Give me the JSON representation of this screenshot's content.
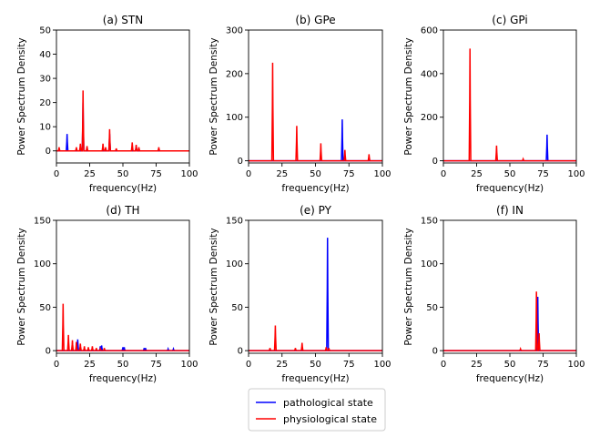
{
  "chart_data": {
    "type": "line",
    "xlabel": "frequency(Hz)",
    "ylabel": "Power Spectrum Density",
    "xlim": [
      0,
      100
    ],
    "xticks": [
      0,
      25,
      50,
      75,
      100
    ],
    "legend": {
      "placement": "bottom-center",
      "entries": [
        {
          "name": "pathological state",
          "color": "#0000ff"
        },
        {
          "name": "physiological state",
          "color": "#ff0000"
        }
      ]
    },
    "panels": [
      {
        "title": "(a) STN",
        "ylim": [
          -5,
          50
        ],
        "yticks": [
          0,
          10,
          20,
          30,
          40,
          50
        ],
        "series": [
          {
            "name": "pathological state",
            "baseline": 0,
            "peaks": [
              [
                8,
                7
              ],
              [
                20,
                20
              ],
              [
                40,
                7
              ],
              [
                60,
                2
              ]
            ]
          },
          {
            "name": "physiological state",
            "baseline": 0,
            "peaks": [
              [
                2,
                1.5
              ],
              [
                15,
                1.5
              ],
              [
                18,
                3
              ],
              [
                20,
                25
              ],
              [
                23,
                2
              ],
              [
                35,
                3
              ],
              [
                37,
                1.5
              ],
              [
                40,
                9
              ],
              [
                45,
                1
              ],
              [
                57,
                3.5
              ],
              [
                60,
                2.5
              ],
              [
                62,
                1.5
              ],
              [
                77,
                1.5
              ]
            ]
          }
        ]
      },
      {
        "title": "(b) GPe",
        "ylim": [
          -5,
          300
        ],
        "yticks": [
          0,
          100,
          200,
          300
        ],
        "series": [
          {
            "name": "pathological state",
            "baseline": 0,
            "peaks": [
              [
                70,
                95
              ]
            ]
          },
          {
            "name": "physiological state",
            "baseline": 0,
            "peaks": [
              [
                18,
                225
              ],
              [
                36,
                80
              ],
              [
                54,
                40
              ],
              [
                72,
                25
              ],
              [
                90,
                15
              ]
            ]
          }
        ]
      },
      {
        "title": "(c) GPi",
        "ylim": [
          -10,
          600
        ],
        "yticks": [
          0,
          200,
          400,
          600
        ],
        "series": [
          {
            "name": "pathological state",
            "baseline": 0,
            "peaks": [
              [
                78,
                120
              ]
            ]
          },
          {
            "name": "physiological state",
            "baseline": 0,
            "peaks": [
              [
                20,
                515
              ],
              [
                40,
                70
              ],
              [
                60,
                8
              ]
            ]
          }
        ]
      },
      {
        "title": "(d) TH",
        "ylim": [
          -3,
          150
        ],
        "yticks": [
          0,
          50,
          100,
          150
        ],
        "series": [
          {
            "name": "pathological state",
            "baseline": 0,
            "peaks": [
              [
                16,
                13
              ],
              [
                33,
                5
              ],
              [
                34,
                6
              ],
              [
                50,
                4
              ],
              [
                51,
                4
              ],
              [
                66,
                3
              ],
              [
                67,
                3
              ],
              [
                84,
                2
              ],
              [
                88,
                2
              ]
            ]
          },
          {
            "name": "physiological state",
            "baseline": 0,
            "peaks": [
              [
                5,
                54
              ],
              [
                9,
                18
              ],
              [
                12,
                12
              ],
              [
                15,
                10
              ],
              [
                18,
                8
              ],
              [
                21,
                5
              ],
              [
                24,
                4
              ],
              [
                27,
                5
              ],
              [
                30,
                3
              ],
              [
                33,
                2
              ],
              [
                36,
                3
              ]
            ]
          }
        ]
      },
      {
        "title": "(e) PY",
        "ylim": [
          -3,
          150
        ],
        "yticks": [
          0,
          50,
          100,
          150
        ],
        "series": [
          {
            "name": "pathological state",
            "baseline": 0,
            "peaks": [
              [
                59,
                130
              ]
            ]
          },
          {
            "name": "physiological state",
            "baseline": 0,
            "peaks": [
              [
                16,
                3
              ],
              [
                20,
                29
              ],
              [
                35,
                3
              ],
              [
                40,
                9
              ],
              [
                58,
                4
              ],
              [
                60,
                3
              ]
            ]
          }
        ]
      },
      {
        "title": "(f) IN",
        "ylim": [
          -3,
          150
        ],
        "yticks": [
          0,
          50,
          100,
          150
        ],
        "series": [
          {
            "name": "pathological state",
            "baseline": 0,
            "peaks": [
              [
                71,
                62
              ]
            ]
          },
          {
            "name": "physiological state",
            "baseline": 0,
            "peaks": [
              [
                58,
                2
              ],
              [
                70,
                68
              ],
              [
                72,
                20
              ]
            ]
          }
        ]
      }
    ]
  }
}
